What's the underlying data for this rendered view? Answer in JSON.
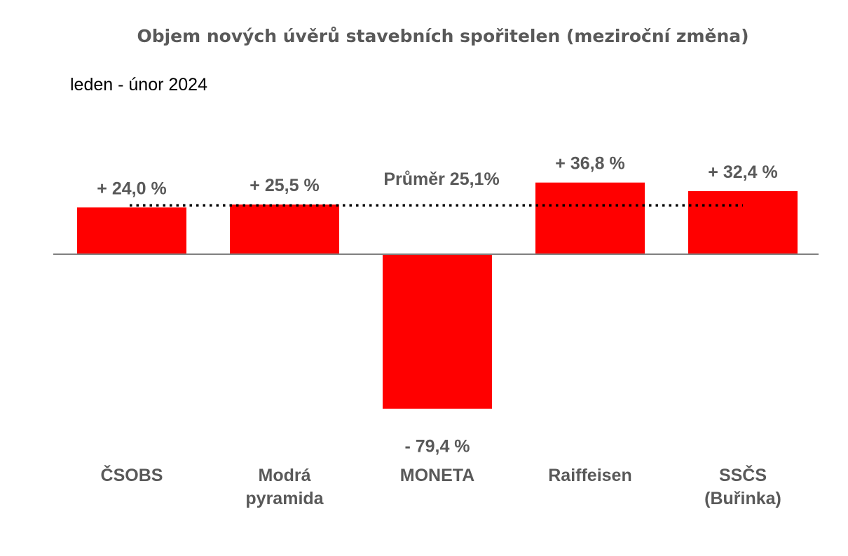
{
  "chart_data": {
    "type": "bar",
    "title": "Objem nových úvěrů stavebních spořitelen (meziroční změna)",
    "subtitle": "leden - únor 2024",
    "categories": [
      [
        "ČSOBS"
      ],
      [
        "Modrá",
        "pyramida"
      ],
      [
        "MONETA"
      ],
      [
        "Raiffeisen"
      ],
      [
        "SSČS",
        "(Buřinka)"
      ]
    ],
    "values": [
      24.0,
      25.5,
      -79.4,
      36.8,
      32.4
    ],
    "value_labels": [
      "+ 24,0 %",
      "+ 25,5 %",
      "- 79,4 %",
      "+ 36,8 %",
      "+ 32,4 %"
    ],
    "average": {
      "value": 25.1,
      "label": "Průměr 25,1%"
    },
    "ylim": [
      -100,
      55
    ],
    "grid": false,
    "legend": "none",
    "bar_color": "#ff0000",
    "axis_color": "#808080",
    "label_color": "#595959"
  }
}
